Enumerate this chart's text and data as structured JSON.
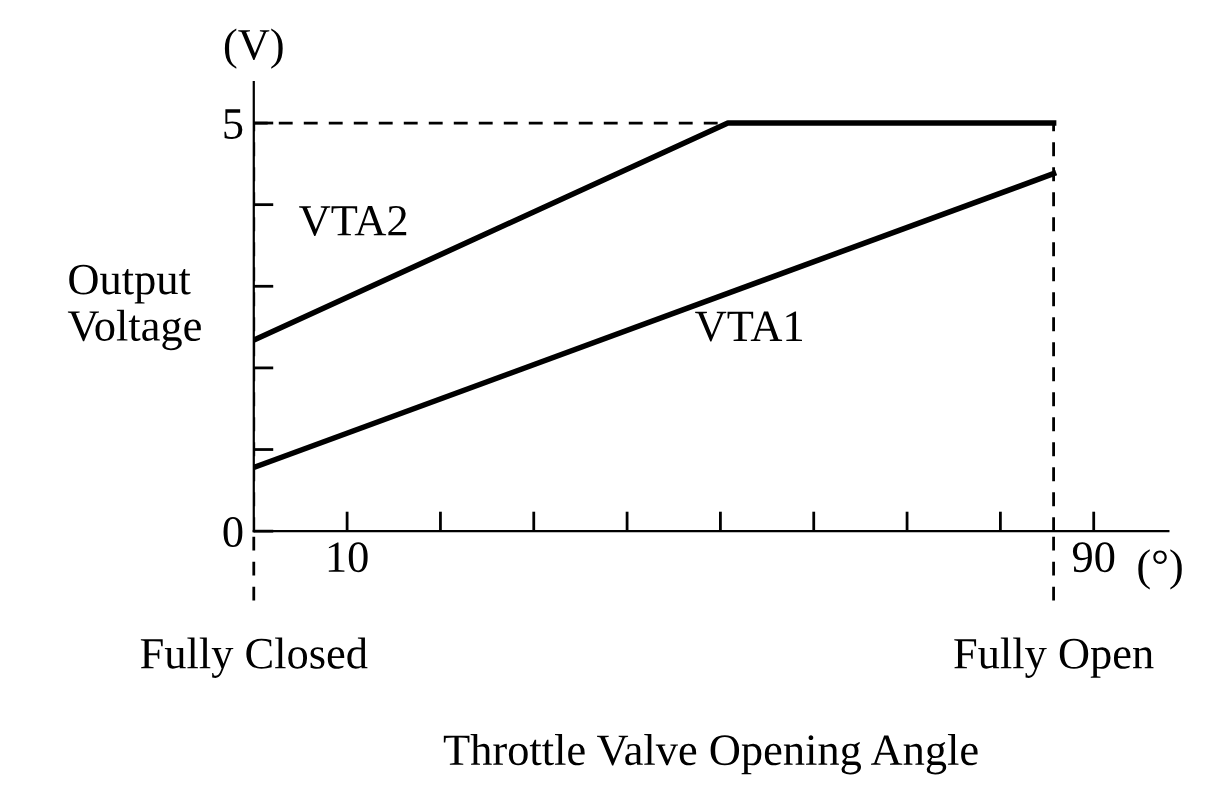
{
  "chart_data": {
    "type": "line",
    "xlabel": "Throttle Valve Opening Angle",
    "ylabel": "Output\nVoltage",
    "series": [
      {
        "name": "VTA1",
        "color": "#000000",
        "x": [
          0,
          85.7
        ],
        "values": [
          0.78,
          4.38
        ]
      },
      {
        "name": "VTA2",
        "color": "#000000",
        "x": [
          0,
          50.8,
          85.7
        ],
        "values": [
          2.34,
          5,
          5
        ]
      }
    ],
    "xlim": [
      0,
      98
    ],
    "ylim": [
      0,
      5.5
    ],
    "xticks": [
      {
        "value": 10,
        "label": "10"
      },
      {
        "value": 20,
        "label": null
      },
      {
        "value": 30,
        "label": null
      },
      {
        "value": 40,
        "label": null
      },
      {
        "value": 50,
        "label": null
      },
      {
        "value": 60,
        "label": null
      },
      {
        "value": 70,
        "label": null
      },
      {
        "value": 80,
        "label": null
      },
      {
        "value": 90,
        "label": "90"
      }
    ],
    "yticks": [
      0,
      {
        "value": 1,
        "label": null
      },
      {
        "value": 2,
        "label": null
      },
      {
        "value": 3,
        "label": null
      },
      {
        "value": 4,
        "label": null
      },
      5
    ],
    "ref_lines": [
      {
        "axis": "x",
        "value": 0,
        "label": "Fully Closed",
        "line_style": "dashed"
      },
      {
        "axis": "x",
        "value": 85.7,
        "label": "Fully Open",
        "line_style": "dashed"
      },
      {
        "axis": "y",
        "value": 5,
        "label": null,
        "line_style": "dashed"
      }
    ],
    "annotations": [
      "(V)",
      "(°)"
    ],
    "grid": false,
    "marker": "none",
    "line_style": "solid"
  }
}
